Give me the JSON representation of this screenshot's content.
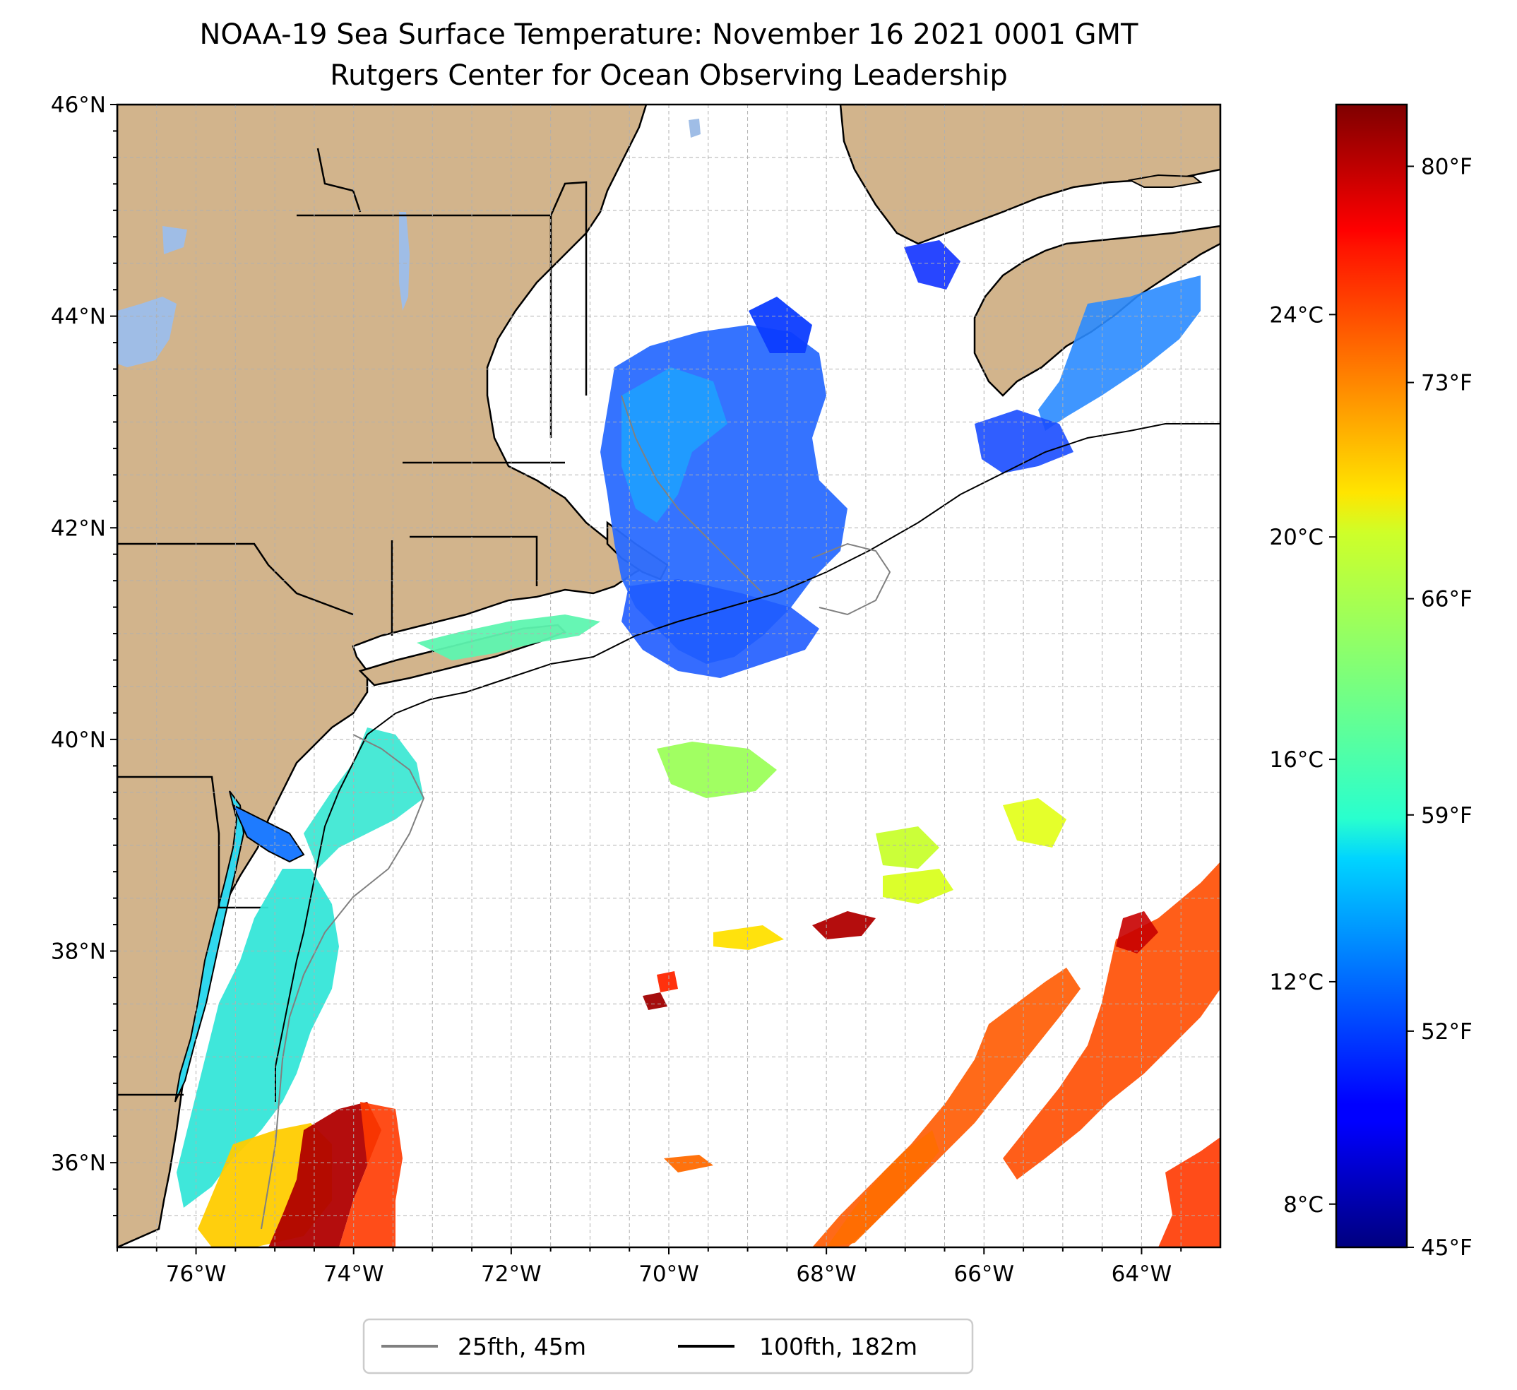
{
  "title": {
    "line1": "NOAA-19 Sea Surface Temperature: November 16 2021 0001 GMT",
    "line2": "Rutgers Center for Ocean Observing Leadership"
  },
  "colors": {
    "land": "#d2b48c",
    "lakes": "#9fbde6",
    "ocean_no_data": "#ffffff",
    "isobath_25fth": "#808080",
    "isobath_100fth": "#000000",
    "grid": "#b0b0b0"
  },
  "map": {
    "projection": "plate-carree",
    "lon_range": [
      -77.0,
      -63.0
    ],
    "lat_range": [
      35.2,
      46.0
    ],
    "lon_ticks": [
      "76°W",
      "74°W",
      "72°W",
      "70°W",
      "68°W",
      "66°W",
      "64°W"
    ],
    "lat_ticks": [
      "46°N",
      "44°N",
      "42°N",
      "40°N",
      "38°N",
      "36°N"
    ]
  },
  "colorbar": {
    "colormap": "jet",
    "range_f": [
      45,
      82
    ],
    "fahrenheit_ticks": [
      "80°F",
      "73°F",
      "66°F",
      "59°F",
      "52°F",
      "45°F"
    ],
    "celsius_ticks": [
      "24°C",
      "20°C",
      "16°C",
      "12°C",
      "8°C"
    ],
    "fahrenheit_tick_values": [
      80,
      73,
      66,
      59,
      52,
      45
    ],
    "celsius_tick_values": [
      24,
      20,
      16,
      12,
      8
    ]
  },
  "legend": {
    "items": [
      {
        "label": "25fth, 45m",
        "color": "#808080"
      },
      {
        "label": "100fth, 182m",
        "color": "#000000"
      }
    ]
  }
}
